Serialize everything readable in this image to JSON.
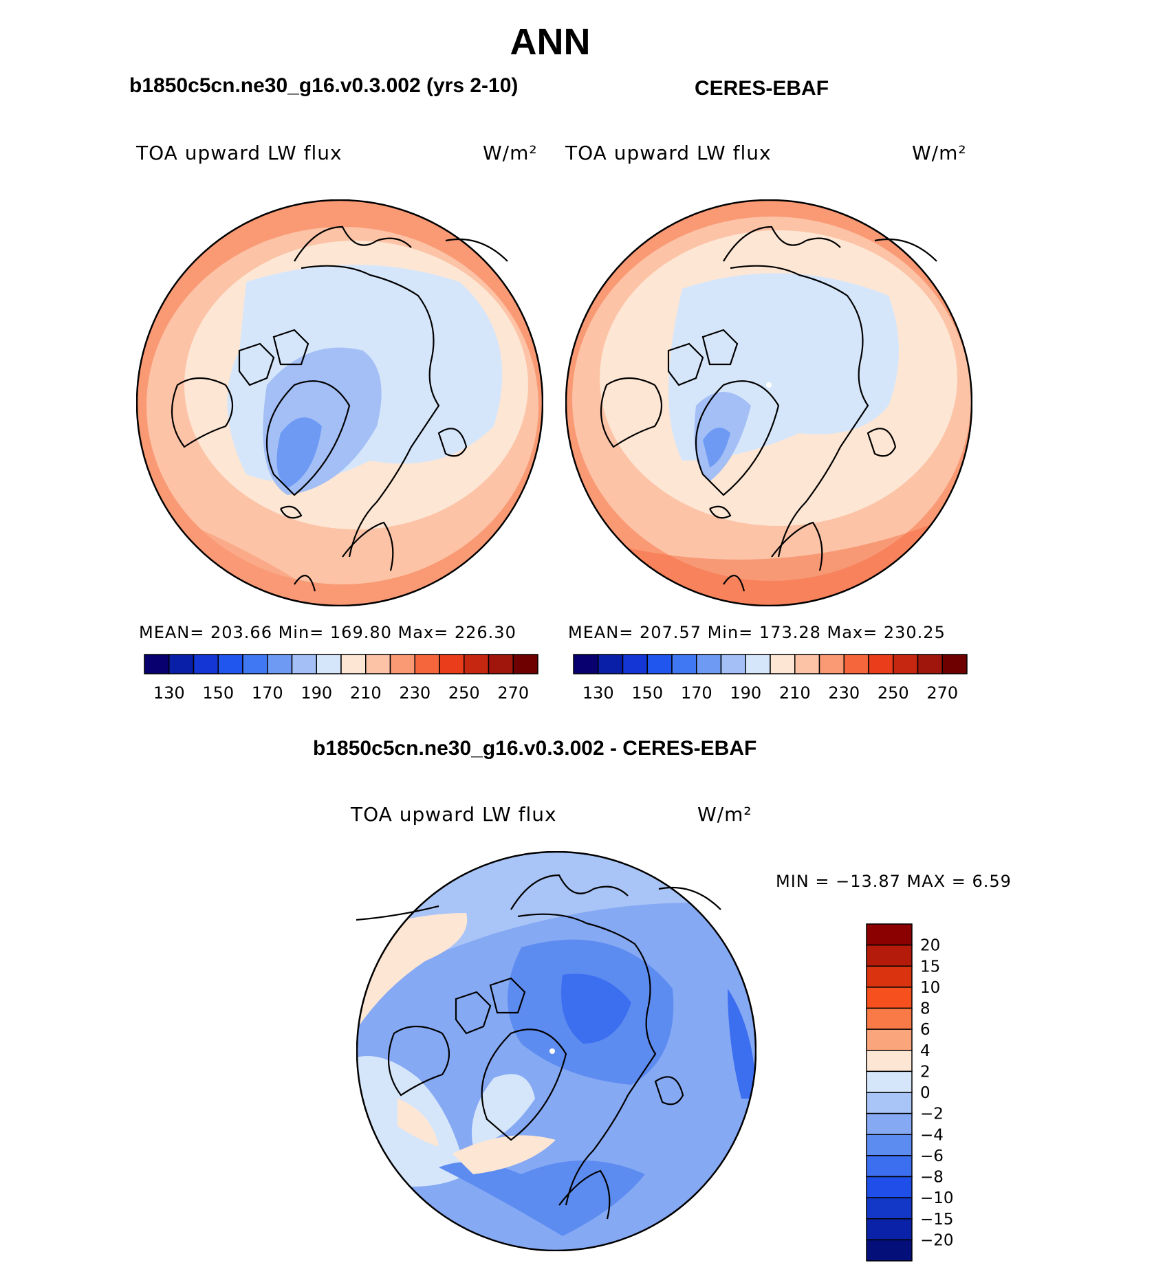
{
  "figure": {
    "season": "ANN"
  },
  "panels": [
    {
      "case_title": "b1850c5cn.ne30_g16.v0.3.002 (yrs 2-10)",
      "variable": "TOA upward LW flux",
      "units": "W/m²",
      "stats": {
        "mean": "203.66",
        "min": "169.80",
        "max": "226.30"
      },
      "stats_line": "MEAN= 203.66   Min= 169.80   Max= 226.30"
    },
    {
      "case_title": "CERES-EBAF",
      "variable": "TOA upward LW flux",
      "units": "W/m²",
      "stats": {
        "mean": "207.57",
        "min": "173.28",
        "max": "230.25"
      },
      "stats_line": "MEAN= 207.57   Min= 173.28   Max= 230.25"
    }
  ],
  "diff_panel": {
    "case_title": "b1850c5cn.ne30_g16.v0.3.002 - CERES-EBAF",
    "variable": "TOA upward LW flux",
    "units": "W/m²",
    "stats_line": "MIN = −13.87  MAX =     6.59",
    "stats": {
      "min": "-13.87",
      "max": "6.59"
    }
  },
  "chart_data": [
    {
      "type": "heatmap",
      "projection": "north-polar-stereographic",
      "title": "b1850c5cn.ne30_g16.v0.3.002 (yrs 2-10)",
      "variable": "TOA upward LW flux",
      "units": "W/m2",
      "mean": 203.66,
      "min": 169.8,
      "max": 226.3,
      "colorbar": {
        "orientation": "horizontal",
        "levels": [
          130,
          140,
          150,
          160,
          170,
          180,
          190,
          200,
          210,
          220,
          230,
          240,
          250,
          260,
          270
        ],
        "tick_labels": [
          "130",
          "150",
          "170",
          "190",
          "210",
          "230",
          "250",
          "270"
        ],
        "colors": [
          "#08006e",
          "#0a1fa8",
          "#1336d4",
          "#2056ee",
          "#3f78f2",
          "#6e9af4",
          "#a3bff6",
          "#d6e6fa",
          "#fde6d4",
          "#fcc3a6",
          "#f99a75",
          "#f5663c",
          "#ea3d1c",
          "#c52710",
          "#a0150c",
          "#6e0000"
        ]
      }
    },
    {
      "type": "heatmap",
      "projection": "north-polar-stereographic",
      "title": "CERES-EBAF",
      "variable": "TOA upward LW flux",
      "units": "W/m2",
      "mean": 207.57,
      "min": 173.28,
      "max": 230.25,
      "colorbar": {
        "orientation": "horizontal",
        "levels": [
          130,
          140,
          150,
          160,
          170,
          180,
          190,
          200,
          210,
          220,
          230,
          240,
          250,
          260,
          270
        ],
        "tick_labels": [
          "130",
          "150",
          "170",
          "190",
          "210",
          "230",
          "250",
          "270"
        ],
        "colors": [
          "#08006e",
          "#0a1fa8",
          "#1336d4",
          "#2056ee",
          "#3f78f2",
          "#6e9af4",
          "#a3bff6",
          "#d6e6fa",
          "#fde6d4",
          "#fcc3a6",
          "#f99a75",
          "#f5663c",
          "#ea3d1c",
          "#c52710",
          "#a0150c",
          "#6e0000"
        ]
      }
    },
    {
      "type": "heatmap",
      "projection": "north-polar-stereographic",
      "title": "b1850c5cn.ne30_g16.v0.3.002 - CERES-EBAF",
      "variable": "TOA upward LW flux",
      "units": "W/m2",
      "min": -13.87,
      "max": 6.59,
      "colorbar": {
        "orientation": "vertical",
        "tick_labels": [
          "20",
          "15",
          "10",
          "8",
          "6",
          "4",
          "2",
          "0",
          "−2",
          "−4",
          "−6",
          "−8",
          "−10",
          "−15",
          "−20"
        ],
        "colors_top_to_bottom": [
          "#8b0000",
          "#b51b0b",
          "#d9340f",
          "#f5501d",
          "#f97a46",
          "#fba57c",
          "#fde6d4",
          "#d6e6fa",
          "#a9c4f6",
          "#86a9f4",
          "#5d8cf1",
          "#3c6ef0",
          "#1f4fe8",
          "#1338c8",
          "#0a22a8",
          "#050f7a"
        ]
      }
    }
  ]
}
